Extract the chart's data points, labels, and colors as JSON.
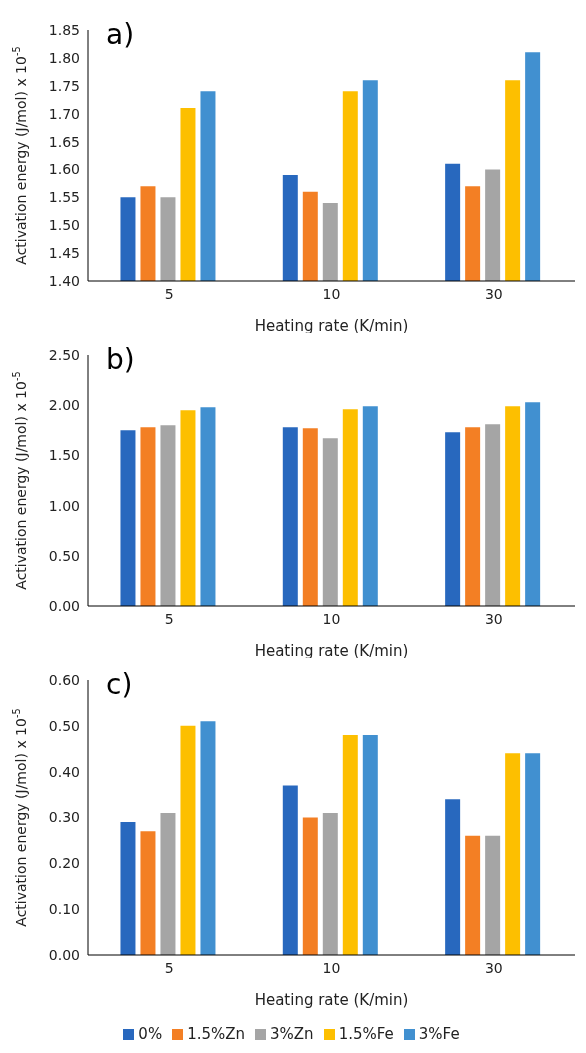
{
  "chart_data": [
    {
      "type": "bar",
      "title": "a)",
      "xlabel": "Heating rate (K/min)",
      "ylabel": "Activation energy (J/mol) x 10$^{-5}$",
      "categories": [
        "5",
        "10",
        "30"
      ],
      "ylim": [
        1.4,
        1.85
      ],
      "yticks": [
        {
          "value": 1.4,
          "label": "1.40"
        },
        {
          "value": 1.45,
          "label": "1.45"
        },
        {
          "value": 1.5,
          "label": "1.50"
        },
        {
          "value": 1.55,
          "label": "1.55"
        },
        {
          "value": 1.6,
          "label": "1.60"
        },
        {
          "value": 1.65,
          "label": "1.65"
        },
        {
          "value": 1.7,
          "label": "1.70"
        },
        {
          "value": 1.75,
          "label": "1.75"
        },
        {
          "value": 1.8,
          "label": "1.80"
        },
        {
          "value": 1.85,
          "label": "1.85"
        }
      ],
      "series": [
        {
          "color": "#2868be",
          "values": [
            1.55,
            1.59,
            1.61
          ]
        },
        {
          "color": "#f37f24",
          "values": [
            1.57,
            1.56,
            1.57
          ]
        },
        {
          "color": "#a5a5a5",
          "values": [
            1.55,
            1.54,
            1.6
          ]
        },
        {
          "color": "#fdbf00",
          "values": [
            1.71,
            1.74,
            1.76
          ]
        },
        {
          "color": "#4190d0",
          "values": [
            1.74,
            1.76,
            1.81
          ]
        }
      ]
    },
    {
      "type": "bar",
      "title": "b)",
      "xlabel": "Heating rate (K/min)",
      "ylabel": "Activation energy (J/mol) x 10$^{-5}$",
      "categories": [
        "5",
        "10",
        "30"
      ],
      "ylim": [
        0,
        2.5
      ],
      "yticks": [
        {
          "value": 0,
          "label": "0.00"
        },
        {
          "value": 0.5,
          "label": "0.50"
        },
        {
          "value": 1,
          "label": "1.00"
        },
        {
          "value": 1.5,
          "label": "1.50"
        },
        {
          "value": 2,
          "label": "2.00"
        },
        {
          "value": 2.5,
          "label": "2.50"
        }
      ],
      "series": [
        {
          "color": "#2868be",
          "values": [
            1.75,
            1.78,
            1.73
          ]
        },
        {
          "color": "#f37f24",
          "values": [
            1.78,
            1.77,
            1.78
          ]
        },
        {
          "color": "#a5a5a5",
          "values": [
            1.8,
            1.67,
            1.81
          ]
        },
        {
          "color": "#fdbf00",
          "values": [
            1.95,
            1.96,
            1.99
          ]
        },
        {
          "color": "#4190d0",
          "values": [
            1.98,
            1.99,
            2.03
          ]
        }
      ]
    },
    {
      "type": "bar",
      "title": "c)",
      "xlabel": "Heating rate (K/min)",
      "ylabel": "Activation energy (J/mol) x 10$^{-5}$",
      "categories": [
        "5",
        "10",
        "30"
      ],
      "ylim": [
        0,
        0.6
      ],
      "yticks": [
        {
          "value": 0,
          "label": "0.00"
        },
        {
          "value": 0.1,
          "label": "0.10"
        },
        {
          "value": 0.2,
          "label": "0.20"
        },
        {
          "value": 0.3,
          "label": "0.30"
        },
        {
          "value": 0.4,
          "label": "0.40"
        },
        {
          "value": 0.5,
          "label": "0.50"
        },
        {
          "value": 0.6,
          "label": "0.60"
        }
      ],
      "legend": "bottom",
      "series": [
        {
          "name": "0%",
          "color": "#2868be",
          "values": [
            0.29,
            0.37,
            0.34
          ]
        },
        {
          "name": "1.5%Zn",
          "color": "#f37f24",
          "values": [
            0.27,
            0.3,
            0.26
          ]
        },
        {
          "name": "3%Zn",
          "color": "#a5a5a5",
          "values": [
            0.31,
            0.31,
            0.26
          ]
        },
        {
          "name": "1.5%Fe",
          "color": "#fdbf00",
          "values": [
            0.5,
            0.48,
            0.44
          ]
        },
        {
          "name": "3%Fe",
          "color": "#4190d0",
          "values": [
            0.51,
            0.48,
            0.44
          ]
        }
      ]
    }
  ]
}
